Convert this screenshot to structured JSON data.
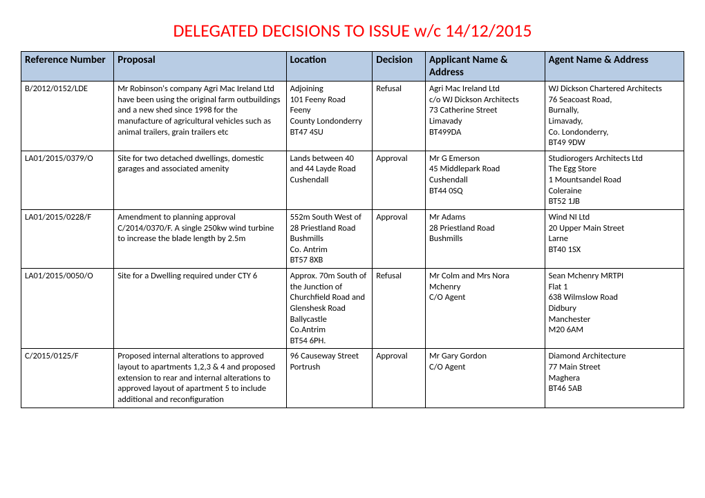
{
  "title": {
    "text": "DELEGATED DECISIONS TO ISSUE w/c 14/12/2015",
    "color": "#ff0000",
    "fontsize": 26
  },
  "table": {
    "header_bg": "#b8cce4",
    "header_fontsize": 15,
    "col_widths_pct": [
      14,
      26,
      13,
      8,
      18,
      21
    ],
    "columns": [
      "Reference Number",
      "Proposal",
      "Location",
      "Decision",
      "Applicant Name & Address",
      "Agent Name & Address"
    ],
    "rows": [
      {
        "ref": "B/2012/0152/LDE",
        "proposal": "Mr Robinson's company Agri Mac Ireland Ltd have been using the original farm outbuildings and a new shed since 1998 for the manufacture of agricultural vehicles such as animal trailers, grain trailers etc",
        "location": "Adjoining\n101 Feeny Road\nFeeny\nCounty Londonderry\nBT47 4SU",
        "decision": "Refusal",
        "applicant": "Agri Mac Ireland Ltd\nc/o WJ Dickson Architects\n73 Catherine Street\nLimavady\nBT499DA",
        "agent": "WJ Dickson Chartered Architects\n76 Seacoast Road,\nBurnally,\nLimavady,\nCo. Londonderry,\nBT49 9DW"
      },
      {
        "ref": "LA01/2015/0379/O",
        "proposal": "Site for two detached dwellings, domestic garages and associated amenity",
        "location": "Lands between 40 and 44 Layde Road\nCushendall",
        "decision": "Approval",
        "applicant": "Mr G Emerson\n45 Middlepark Road\nCushendall\nBT44 0SQ",
        "agent": "Studiorogers Architects Ltd\nThe Egg Store\n1 Mountsandel Road\nColeraine\nBT52 1JB"
      },
      {
        "ref": "LA01/2015/0228/F",
        "proposal": "Amendment to planning approval C/2014/0370/F. A single 250kw wind turbine to increase the blade length by 2.5m",
        "location": "552m South West of 28 Priestland Road\nBushmills\nCo. Antrim\nBT57 8XB",
        "decision": "Approval",
        "applicant": "Mr Adams\n28 Priestland Road\nBushmills",
        "agent": "Wind NI Ltd\n20 Upper Main Street\nLarne\nBT40 1SX"
      },
      {
        "ref": "LA01/2015/0050/O",
        "proposal": "Site for a Dwelling required under CTY 6",
        "location": "Approx. 70m South of the Junction of Churchfield Road and Glenshesk Road\nBallycastle\nCo.Antrim\nBT54 6PH.",
        "decision": "Refusal",
        "applicant": "Mr Colm and Mrs Nora Mchenry\nC/O Agent",
        "agent": "Sean Mchenry MRTPI\nFlat 1\n638 Wilmslow Road\nDidbury\nManchester\nM20 6AM"
      },
      {
        "ref": "C/2015/0125/F",
        "proposal": "Proposed internal alterations to approved layout to apartments 1,2,3 & 4 and proposed extension to rear and internal alterations to approved layout of apartment 5 to include additional and reconfiguration",
        "location": "96 Causeway Street\nPortrush",
        "decision": "Approval",
        "applicant": "Mr Gary Gordon\nC/O Agent",
        "agent": "Diamond Architecture\n77 Main Street\nMaghera\nBT46 5AB"
      }
    ]
  }
}
